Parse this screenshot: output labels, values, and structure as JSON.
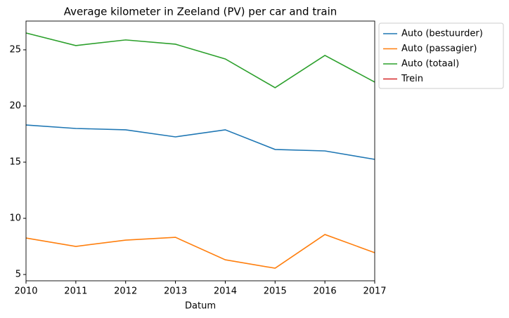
{
  "chart_data": {
    "type": "line",
    "title": "Average kilometer in Zeeland (PV) per car and train",
    "x_label": "Datum",
    "x": [
      2010,
      2011,
      2012,
      2013,
      2014,
      2015,
      2016,
      2017
    ],
    "xlim": [
      2010,
      2017
    ],
    "xticks": [
      2010,
      2011,
      2012,
      2013,
      2014,
      2015,
      2016,
      2017
    ],
    "ylim": [
      4.44,
      27.56
    ],
    "yticks": [
      5,
      10,
      15,
      20,
      25
    ],
    "legend": "outside upper right",
    "series": [
      {
        "name": "Auto (bestuurder)",
        "color": "#1f77b4",
        "values": [
          18.31,
          18.0,
          17.88,
          17.25,
          17.88,
          16.13,
          16.0,
          15.25
        ]
      },
      {
        "name": "Auto (passagier)",
        "color": "#ff7f0e",
        "values": [
          8.25,
          7.5,
          8.06,
          8.31,
          6.31,
          5.56,
          8.56,
          6.94
        ]
      },
      {
        "name": "Auto (totaal)",
        "color": "#2ca02c",
        "values": [
          26.5,
          25.38,
          25.88,
          25.5,
          24.19,
          21.63,
          24.5,
          22.13
        ]
      },
      {
        "name": "Trein",
        "color": "#d62728",
        "values": [
          null,
          null,
          null,
          null,
          null,
          null,
          null,
          null
        ]
      }
    ]
  }
}
